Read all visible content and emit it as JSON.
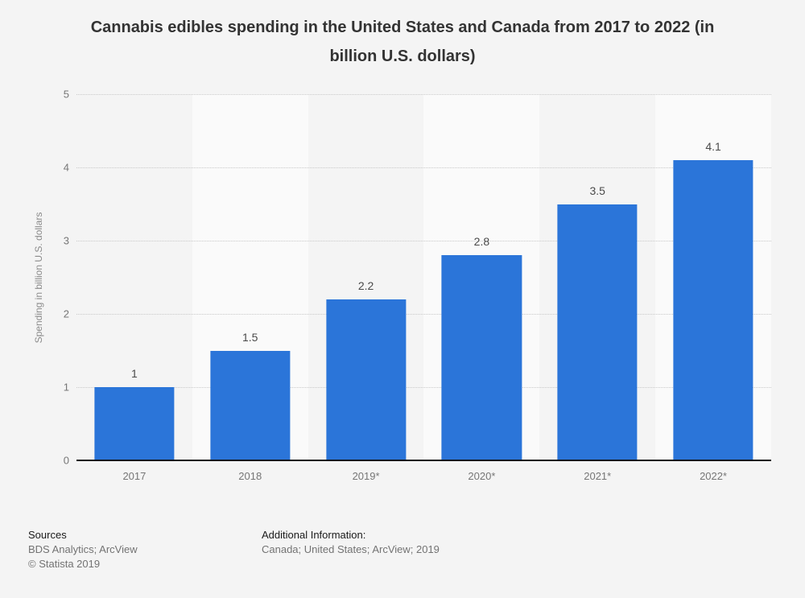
{
  "title": "Cannabis edibles spending in the United States and Canada from 2017 to 2022 (in billion U.S. dollars)",
  "chart_data": {
    "type": "bar",
    "categories": [
      "2017",
      "2018",
      "2019*",
      "2020*",
      "2021*",
      "2022*"
    ],
    "values": [
      1,
      1.5,
      2.2,
      2.8,
      3.5,
      4.1
    ],
    "value_labels": [
      "1",
      "1.5",
      "2.2",
      "2.8",
      "3.5",
      "4.1"
    ],
    "title": "Cannabis edibles spending in the United States and Canada from 2017 to 2022 (in billion U.S. dollars)",
    "xlabel": "",
    "ylabel": "Spending in billion U.S. dollars",
    "ylim": [
      0,
      5
    ],
    "ytick_step": 1,
    "yticks": [
      "0",
      "1",
      "2",
      "3",
      "4",
      "5"
    ],
    "grid": "horizontal-dotted",
    "legend": "none",
    "bar_color": "#2b75d9",
    "alternating_column_bands": true
  },
  "footer": {
    "sources_label": "Sources",
    "sources_line": "BDS Analytics; ArcView",
    "copyright": "© Statista 2019",
    "additional_label": "Additional Information:",
    "additional_line": "Canada; United States; ArcView; 2019"
  },
  "colors": {
    "background": "#f4f4f4",
    "band_light": "#fafafa",
    "bar": "#2b75d9",
    "gridline": "#c9c9c9",
    "axis_line": "#151515",
    "tick_label": "#767676",
    "value_label": "#4a4a4a",
    "title_text": "#333333"
  }
}
